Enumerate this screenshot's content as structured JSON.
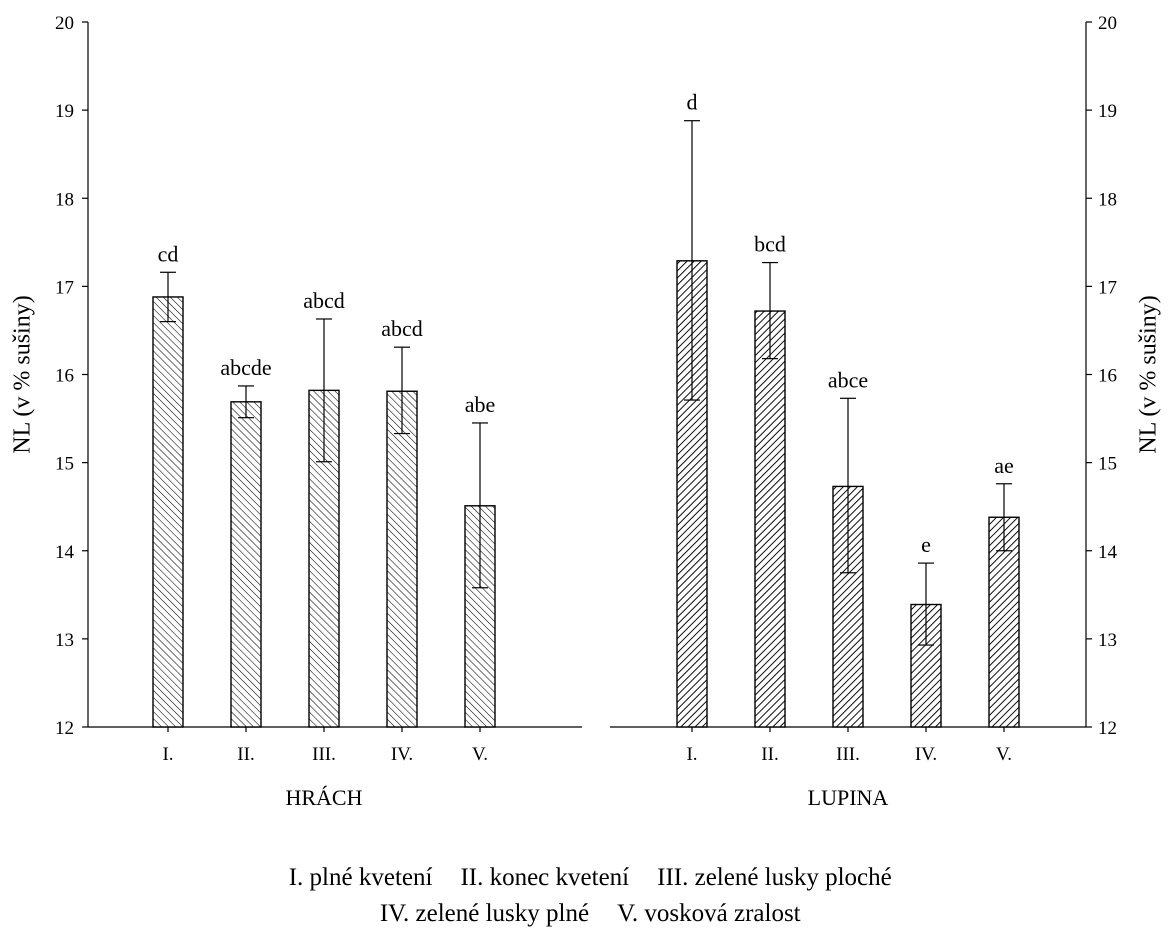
{
  "chart_data": [
    {
      "type": "bar",
      "panel": "HRÁCH",
      "xlabel": "HRÁCH",
      "ylabel": "NL (v % sušiny)",
      "ylim": [
        12,
        20
      ],
      "yticks": [
        12,
        13,
        14,
        15,
        16,
        17,
        18,
        19,
        20
      ],
      "categories": [
        "I.",
        "II.",
        "III.",
        "IV.",
        "V."
      ],
      "values": [
        16.88,
        15.69,
        15.82,
        15.81,
        14.51
      ],
      "error_high": [
        17.16,
        15.87,
        16.63,
        16.31,
        15.45
      ],
      "error_low": [
        16.6,
        15.51,
        15.01,
        15.33,
        13.58
      ],
      "labels": [
        "cd",
        "abcde",
        "abcd",
        "abcd",
        "abe"
      ],
      "hatch": "light-diagonal",
      "grid": false
    },
    {
      "type": "bar",
      "panel": "LUPINA",
      "xlabel": "LUPINA",
      "ylabel": "NL (v % sušiny)",
      "ylim": [
        12,
        20
      ],
      "yticks": [
        12,
        13,
        14,
        15,
        16,
        17,
        18,
        19,
        20
      ],
      "categories": [
        "I.",
        "II.",
        "III.",
        "IV.",
        "V."
      ],
      "values": [
        17.29,
        16.72,
        14.73,
        13.39,
        14.38
      ],
      "error_high": [
        18.88,
        17.27,
        15.73,
        13.86,
        14.76
      ],
      "error_low": [
        15.71,
        16.18,
        13.75,
        12.93,
        14.0
      ],
      "labels": [
        "d",
        "bcd",
        "abce",
        "e",
        "ae"
      ],
      "hatch": "dense-diagonal",
      "grid": false
    }
  ],
  "legend": {
    "line1": [
      "I. plné kvetení",
      "II. konec kvetení",
      "III. zelené lusky ploché"
    ],
    "line2": [
      "IV. zelené lusky plné",
      "V. vosková zralost"
    ]
  }
}
